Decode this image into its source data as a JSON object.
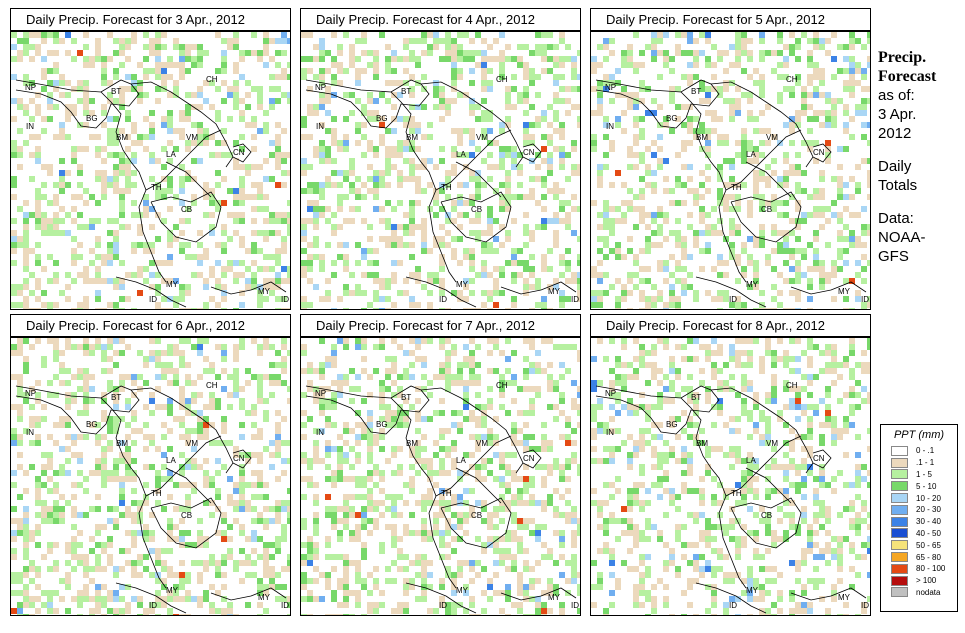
{
  "panels": [
    {
      "title": "Daily Precip. Forecast for  3 Apr., 2012",
      "seed": 3
    },
    {
      "title": "Daily Precip. Forecast for  4 Apr., 2012",
      "seed": 4
    },
    {
      "title": "Daily Precip. Forecast for  5 Apr., 2012",
      "seed": 5
    },
    {
      "title": "Daily Precip. Forecast for  6 Apr., 2012",
      "seed": 6
    },
    {
      "title": "Daily Precip. Forecast for  7 Apr., 2012",
      "seed": 7
    },
    {
      "title": "Daily Precip. Forecast for  8 Apr., 2012",
      "seed": 8
    }
  ],
  "map_labels": [
    "NP",
    "BT",
    "BG",
    "IN",
    "BM",
    "CH",
    "VM",
    "LA",
    "TH",
    "CB",
    "CN",
    "MY",
    "ID",
    "MY",
    "ID"
  ],
  "sidebar": {
    "line1": "Precip.",
    "line2": "Forecast",
    "line3": "as of:",
    "line4": "3 Apr.",
    "line5": "2012",
    "line6": "Daily",
    "line7": "Totals",
    "line8": "Data:",
    "line9": "NOAA-",
    "line10": "GFS"
  },
  "legend": {
    "title": "PPT (mm)",
    "items": [
      {
        "label": "0 - .1",
        "color": "#ffffff"
      },
      {
        "label": ".1 - 1",
        "color": "#ecd9bd"
      },
      {
        "label": "1 - 5",
        "color": "#b6f0a0"
      },
      {
        "label": "5 - 10",
        "color": "#78d86a"
      },
      {
        "label": "10 - 20",
        "color": "#a9d6f5"
      },
      {
        "label": "20 - 30",
        "color": "#70aef0"
      },
      {
        "label": "30 - 40",
        "color": "#3c82e6"
      },
      {
        "label": "40 - 50",
        "color": "#1a4fd2"
      },
      {
        "label": "50 - 65",
        "color": "#f6e37a"
      },
      {
        "label": "65 - 80",
        "color": "#f5a623"
      },
      {
        "label": "80 - 100",
        "color": "#e44a14"
      },
      {
        "label": "> 100",
        "color": "#b50d0d"
      },
      {
        "label": "nodata",
        "color": "#c0c0c0"
      }
    ]
  }
}
